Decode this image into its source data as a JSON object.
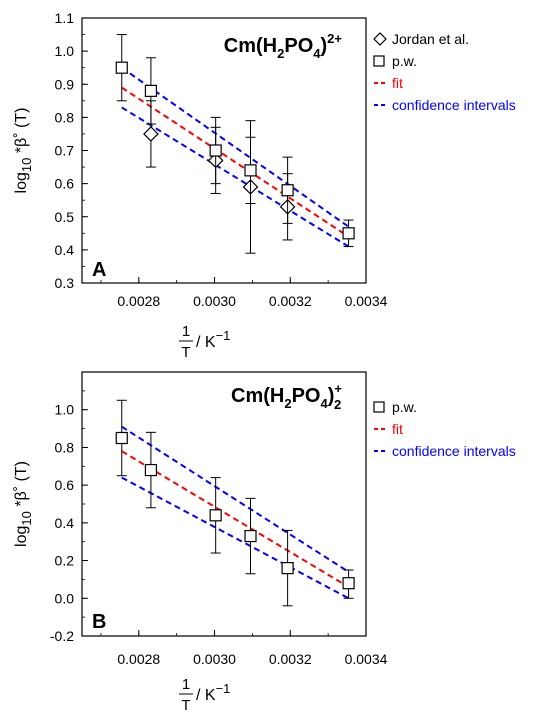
{
  "chart_data": [
    {
      "type": "scatter",
      "panel_letter": "A",
      "species": {
        "base": "Cm(H",
        "sub1": "2",
        "mid": "PO",
        "sub2": "4",
        "close": ")",
        "sup": "2+",
        "sub3": ""
      },
      "ylabel": {
        "pre": "log",
        "sub": "10",
        "post": " *β˚ (T)"
      },
      "xlabel": {
        "num": "1",
        "den": "T",
        "post": "/ K",
        "sup": "−1"
      },
      "xlim": [
        0.00265,
        0.0034
      ],
      "ylim": [
        0.3,
        1.1
      ],
      "x_ticks": [
        0.0028,
        0.003,
        0.0032,
        0.0034
      ],
      "x_tick_labels": [
        "0.0028",
        "0.0030",
        "0.0032",
        "0.0034"
      ],
      "y_ticks": [
        0.3,
        0.4,
        0.5,
        0.6,
        0.7,
        0.8,
        0.9,
        1.0,
        1.1
      ],
      "y_tick_labels": [
        "0.3",
        "0.4",
        "0.5",
        "0.6",
        "0.7",
        "0.8",
        "0.9",
        "1.0",
        "1.1"
      ],
      "series": [
        {
          "name": "Jordan et al.",
          "marker": "diamond",
          "x": [
            0.002832,
            0.003003,
            0.003095,
            0.003193
          ],
          "y": [
            0.75,
            0.67,
            0.59,
            0.53
          ],
          "err_low": [
            0.65,
            0.57,
            0.39,
            0.43
          ],
          "err_high": [
            0.85,
            0.77,
            0.79,
            0.63
          ]
        },
        {
          "name": "p.w.",
          "marker": "square",
          "x": [
            0.002755,
            0.002832,
            0.003003,
            0.003095,
            0.003193,
            0.003354
          ],
          "y": [
            0.95,
            0.88,
            0.7,
            0.64,
            0.58,
            0.45
          ],
          "err_low": [
            0.85,
            0.78,
            0.6,
            0.54,
            0.48,
            0.41
          ],
          "err_high": [
            1.05,
            0.98,
            0.8,
            0.74,
            0.68,
            0.49
          ]
        }
      ],
      "fit": {
        "name": "fit",
        "color": "#ff0000",
        "x": [
          0.002755,
          0.003354
        ],
        "y": [
          0.89,
          0.44
        ]
      },
      "confidence": {
        "name": "confidence intervals",
        "color": "#0000ff",
        "x": [
          0.002755,
          0.003354
        ],
        "upper": [
          0.95,
          0.47
        ],
        "lower": [
          0.83,
          0.41
        ]
      }
    },
    {
      "type": "scatter",
      "panel_letter": "B",
      "species": {
        "base": "Cm(H",
        "sub1": "2",
        "mid": "PO",
        "sub2": "4",
        "close": ")",
        "sup": "+",
        "sub3": "2"
      },
      "ylabel": {
        "pre": "log",
        "sub": "10",
        "post": " *β˚ (T)"
      },
      "xlabel": {
        "num": "1",
        "den": "T",
        "post": "/ K",
        "sup": "−1"
      },
      "xlim": [
        0.00265,
        0.0034
      ],
      "ylim": [
        -0.2,
        1.2
      ],
      "x_ticks": [
        0.0028,
        0.003,
        0.0032,
        0.0034
      ],
      "x_tick_labels": [
        "0.0028",
        "0.0030",
        "0.0032",
        "0.0034"
      ],
      "y_ticks": [
        -0.2,
        0.0,
        0.2,
        0.4,
        0.6,
        0.8,
        1.0
      ],
      "y_tick_labels": [
        "-0.2",
        "0.0",
        "0.2",
        "0.4",
        "0.6",
        "0.8",
        "1.0"
      ],
      "series": [
        {
          "name": "p.w.",
          "marker": "square",
          "x": [
            0.002755,
            0.002832,
            0.003003,
            0.003095,
            0.003193,
            0.003354
          ],
          "y": [
            0.85,
            0.68,
            0.44,
            0.33,
            0.16,
            0.08
          ],
          "err_low": [
            0.65,
            0.48,
            0.24,
            0.13,
            -0.04,
            0.0
          ],
          "err_high": [
            1.05,
            0.88,
            0.64,
            0.53,
            0.36,
            0.15
          ]
        }
      ],
      "fit": {
        "name": "fit",
        "color": "#ff0000",
        "x": [
          0.002755,
          0.003354
        ],
        "y": [
          0.78,
          0.06
        ]
      },
      "confidence": {
        "name": "confidence intervals",
        "color": "#0000ff",
        "x": [
          0.002755,
          0.003354
        ],
        "upper": [
          0.91,
          0.14
        ],
        "lower": [
          0.64,
          0.0
        ]
      }
    }
  ]
}
